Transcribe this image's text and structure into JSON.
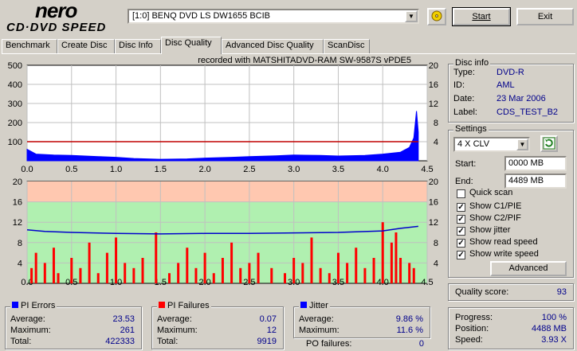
{
  "header": {
    "logo_top": "nero",
    "logo_bottom": "CD·DVD SPEED",
    "drive_selector": "[1:0]  BENQ DVD LS DW1655 BCIB",
    "start_label": "Start",
    "exit_label": "Exit"
  },
  "tabs": [
    {
      "label": "Benchmark"
    },
    {
      "label": "Create Disc"
    },
    {
      "label": "Disc Info"
    },
    {
      "label": "Disc Quality"
    },
    {
      "label": "Advanced Disc Quality"
    },
    {
      "label": "ScanDisc"
    }
  ],
  "chart_caption": "recorded with MATSHITADVD-RAM SW-9587S vPDE5",
  "chart_data": [
    {
      "type": "area",
      "x_ticks": [
        "0.0",
        "0.5",
        "1.0",
        "1.5",
        "2.0",
        "2.5",
        "3.0",
        "3.5",
        "4.0",
        "4.5"
      ],
      "y_left_ticks": [
        "500",
        "400",
        "300",
        "200",
        "100"
      ],
      "y_right_ticks": [
        "20",
        "16",
        "12",
        "8",
        "4"
      ],
      "xlim": [
        0,
        4.5
      ],
      "ylim": [
        0,
        500
      ],
      "grid": true,
      "series": [
        {
          "values_desc": "PI errors",
          "color": "#0000ff",
          "x": [
            0,
            0.1,
            0.3,
            0.5,
            0.8,
            1.0,
            1.2,
            1.5,
            1.8,
            2.0,
            2.3,
            2.5,
            2.8,
            3.0,
            3.3,
            3.5,
            3.8,
            4.0,
            4.2,
            4.3,
            4.35,
            4.38,
            4.4
          ],
          "y": [
            60,
            35,
            30,
            28,
            22,
            18,
            12,
            8,
            10,
            14,
            18,
            22,
            26,
            30,
            28,
            25,
            28,
            35,
            45,
            70,
            120,
            260,
            150
          ]
        },
        {
          "values_desc": "read speed",
          "color": "#c00000",
          "x": [
            0,
            4.4
          ],
          "y": [
            4.0,
            4.0
          ]
        }
      ]
    },
    {
      "type": "bar",
      "x_ticks": [
        "0.0",
        "0.5",
        "1.0",
        "1.5",
        "2.0",
        "2.5",
        "3.0",
        "3.5",
        "4.0",
        "4.5"
      ],
      "y_left_ticks": [
        "20",
        "16",
        "12",
        "8",
        "4"
      ],
      "y_right_ticks": [
        "20",
        "16",
        "12",
        "8",
        "4"
      ],
      "xlim": [
        0,
        4.5
      ],
      "ylim": [
        0,
        20
      ],
      "grid": true,
      "series": [
        {
          "values_desc": "PI failures",
          "color": "#ff0000",
          "x": [
            0.05,
            0.1,
            0.2,
            0.3,
            0.35,
            0.5,
            0.6,
            0.7,
            0.8,
            0.9,
            1.0,
            1.1,
            1.2,
            1.3,
            1.45,
            1.6,
            1.7,
            1.8,
            1.9,
            2.0,
            2.1,
            2.2,
            2.3,
            2.4,
            2.5,
            2.6,
            2.75,
            2.9,
            3.0,
            3.1,
            3.2,
            3.3,
            3.4,
            3.5,
            3.6,
            3.7,
            3.8,
            3.9,
            4.0,
            4.1,
            4.15,
            4.2,
            4.3,
            4.35
          ],
          "y": [
            3,
            6,
            4,
            7,
            2,
            5,
            3,
            8,
            2,
            6,
            9,
            4,
            3,
            5,
            10,
            2,
            4,
            7,
            3,
            6,
            2,
            5,
            8,
            3,
            4,
            6,
            3,
            2,
            5,
            4,
            9,
            3,
            2,
            6,
            4,
            7,
            3,
            5,
            12,
            8,
            10,
            5,
            4,
            3
          ]
        },
        {
          "values_desc": "jitter",
          "color": "#0000cc",
          "x": [
            0,
            0.2,
            0.5,
            1.0,
            1.5,
            2.0,
            2.5,
            3.0,
            3.5,
            4.0,
            4.2,
            4.4
          ],
          "y": [
            10.5,
            10.2,
            10.0,
            9.8,
            9.7,
            9.8,
            9.8,
            9.9,
            10.0,
            10.3,
            10.8,
            11.2
          ]
        }
      ]
    }
  ],
  "disc_info": {
    "title": "Disc info",
    "rows": [
      {
        "label": "Type:",
        "value": "DVD-R"
      },
      {
        "label": "ID:",
        "value": "AML"
      },
      {
        "label": "Date:",
        "value": "23 Mar 2006"
      },
      {
        "label": "Label:",
        "value": "CDS_TEST_B2"
      }
    ]
  },
  "settings": {
    "title": "Settings",
    "speed": "4 X CLV",
    "start_label": "Start:",
    "start_value": "0000 MB",
    "end_label": "End:",
    "end_value": "4489 MB",
    "checks": [
      {
        "label": "Quick scan",
        "checked": false
      },
      {
        "label": "Show C1/PIE",
        "checked": true
      },
      {
        "label": "Show C2/PIF",
        "checked": true
      },
      {
        "label": "Show jitter",
        "checked": true
      },
      {
        "label": "Show read speed",
        "checked": true
      },
      {
        "label": "Show write speed",
        "checked": true
      }
    ],
    "advanced_label": "Advanced"
  },
  "quality": {
    "label": "Quality score:",
    "value": "93"
  },
  "pi_errors": {
    "title": "PI Errors",
    "color": "#0000ff",
    "rows": [
      {
        "label": "Average:",
        "value": "23.53"
      },
      {
        "label": "Maximum:",
        "value": "261"
      },
      {
        "label": "Total:",
        "value": "422333"
      }
    ]
  },
  "pi_failures": {
    "title": "PI Failures",
    "color": "#ff0000",
    "rows": [
      {
        "label": "Average:",
        "value": "0.07"
      },
      {
        "label": "Maximum:",
        "value": "12"
      },
      {
        "label": "Total:",
        "value": "9919"
      }
    ]
  },
  "jitter": {
    "title": "Jitter",
    "color": "#0000ff",
    "rows": [
      {
        "label": "Average:",
        "value": "9.86 %"
      },
      {
        "label": "Maximum:",
        "value": "11.6 %"
      }
    ],
    "po_label": "PO failures:",
    "po_value": "0"
  },
  "progress": {
    "rows": [
      {
        "label": "Progress:",
        "value": "100 %"
      },
      {
        "label": "Position:",
        "value": "4488 MB"
      },
      {
        "label": "Speed:",
        "value": "3.93 X"
      }
    ]
  }
}
